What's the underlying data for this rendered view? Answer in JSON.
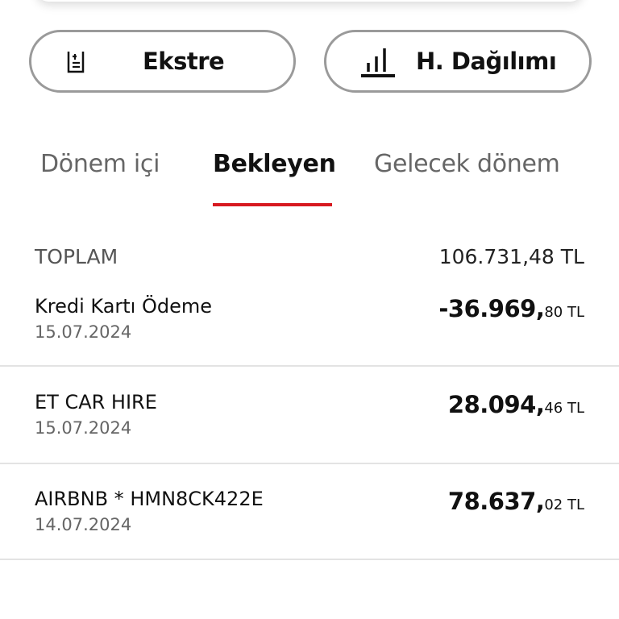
{
  "buttons": [
    {
      "label": "Ekstre",
      "icon": "statement-icon"
    },
    {
      "label": "H. Dağılımı",
      "icon": "bar-chart-icon"
    }
  ],
  "tabs": [
    {
      "label": "Dönem içi",
      "active": false
    },
    {
      "label": "Bekleyen",
      "active": true
    },
    {
      "label": "Gelecek dönem",
      "active": false
    }
  ],
  "accent": "#d71920",
  "total": {
    "label": "TOPLAM",
    "value": "106.731,48 TL"
  },
  "transactions": [
    {
      "title": "Kredi Kartı Ödeme",
      "date": "15.07.2024",
      "amount_main": "-36.969,",
      "amount_decimal": "80 TL"
    },
    {
      "title": "ET CAR HIRE",
      "date": "15.07.2024",
      "amount_main": "28.094,",
      "amount_decimal": "46 TL"
    },
    {
      "title": "AIRBNB * HMN8CK422E",
      "date": "14.07.2024",
      "amount_main": "78.637,",
      "amount_decimal": "02 TL"
    }
  ]
}
